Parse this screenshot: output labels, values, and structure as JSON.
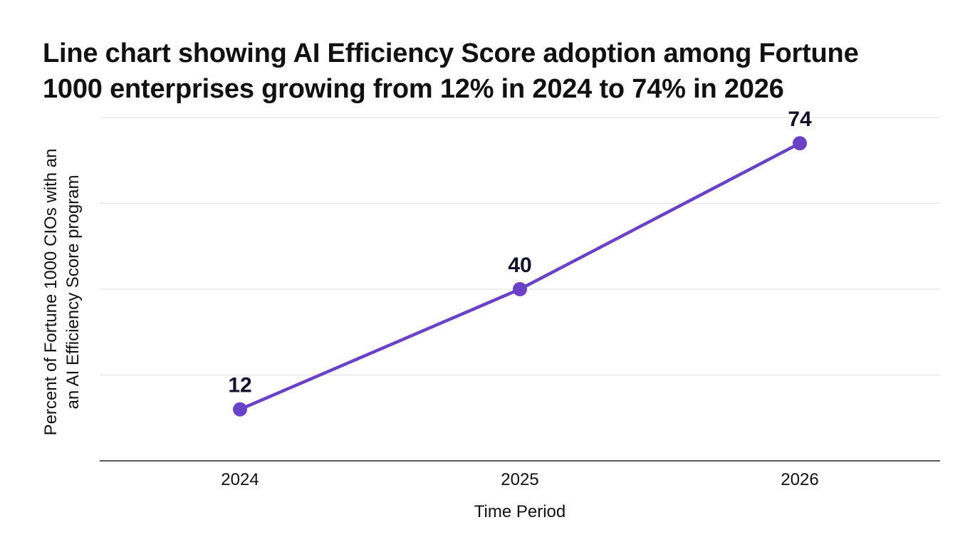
{
  "chart_data": {
    "type": "line",
    "title_lines": [
      "Line chart showing AI Efficiency Score adoption among Fortune",
      "1000 enterprises growing from 12% in 2024 to 74% in 2026"
    ],
    "xlabel": "Time Period",
    "ylabel_lines": [
      "Percent of Fortune 1000 CIOs with an",
      "an AI Efficiency Score program"
    ],
    "categories": [
      "2024",
      "2025",
      "2026"
    ],
    "series": [
      {
        "values": [
          12,
          40,
          74
        ],
        "labels": [
          "12",
          "40",
          "74"
        ],
        "color": "#6a42c8"
      }
    ],
    "ylim": [
      0,
      80
    ],
    "grid": true,
    "legend": "none",
    "colors": {
      "line": "#6a42c8",
      "grid": "#e2e2e2",
      "axis": "#222222",
      "data_label": "#12122a"
    }
  }
}
